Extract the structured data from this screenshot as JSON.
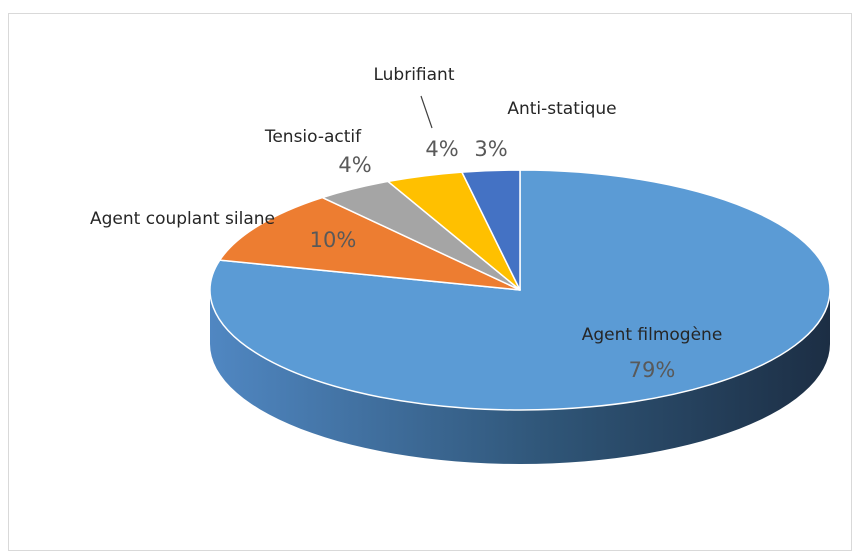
{
  "chart_data": {
    "type": "pie",
    "categories": [
      "Agent filmogène",
      "Agent couplant silane",
      "Tensio-actif",
      "Lubrifiant",
      "Anti-statique"
    ],
    "values": [
      79,
      10,
      4,
      4,
      3
    ],
    "value_labels": [
      "79%",
      "10%",
      "4%",
      "4%",
      "3%"
    ],
    "colors": [
      "#5b9bd5",
      "#ed7d31",
      "#a5a5a5",
      "#ffc000",
      "#4472c4"
    ]
  }
}
